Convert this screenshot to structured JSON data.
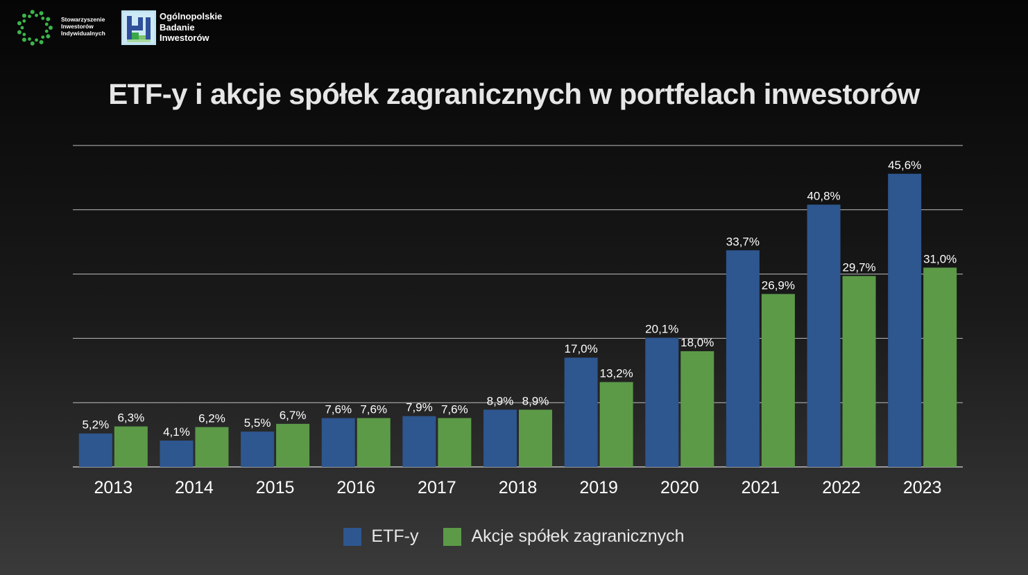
{
  "header": {
    "sii_name": [
      "Stowarzyszenie",
      "Inwestorów",
      "Indywidualnych"
    ],
    "obi_name": [
      "Ogólnopolskie",
      "Badanie",
      "Inwestorów"
    ]
  },
  "colors": {
    "etf": "#2e568f",
    "foreign_stocks": "#5c9a48",
    "grid": "#bfbfbf",
    "text": "#ffffff",
    "sii_green": "#3bb54a"
  },
  "chart_data": {
    "type": "bar",
    "title": "ETF-y i akcje spółek zagranicznych w portfelach inwestorów",
    "categories": [
      "2013",
      "2014",
      "2015",
      "2016",
      "2017",
      "2018",
      "2019",
      "2020",
      "2021",
      "2022",
      "2023"
    ],
    "series": [
      {
        "name": "ETF-y",
        "values": [
          5.2,
          4.1,
          5.5,
          7.6,
          7.9,
          8.9,
          17.0,
          20.1,
          33.7,
          40.8,
          45.6
        ],
        "labels": [
          "5,2%",
          "4,1%",
          "5,5%",
          "7,6%",
          "7,9%",
          "8,9%",
          "17,0%",
          "20,1%",
          "33,7%",
          "40,8%",
          "45,6%"
        ]
      },
      {
        "name": "Akcje spółek zagranicznych",
        "values": [
          6.3,
          6.2,
          6.7,
          7.6,
          7.6,
          8.9,
          13.2,
          18.0,
          26.9,
          29.7,
          31.0
        ],
        "labels": [
          "6,3%",
          "6,2%",
          "6,7%",
          "7,6%",
          "7,6%",
          "8,9%",
          "13,2%",
          "18,0%",
          "26,9%",
          "29,7%",
          "31,0%"
        ]
      }
    ],
    "ylim": [
      0,
      50
    ],
    "grid": true,
    "legend_position": "bottom"
  }
}
